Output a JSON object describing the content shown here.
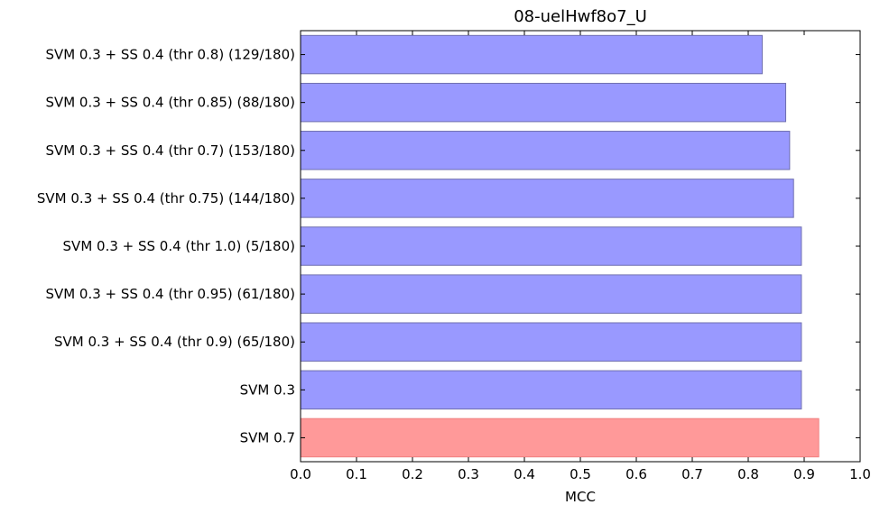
{
  "chart_data": {
    "type": "bar",
    "orientation": "horizontal",
    "title": "08-uelHwf8o7_U",
    "xlabel": "MCC",
    "ylabel": "",
    "xlim": [
      0.0,
      1.0
    ],
    "xticks": [
      "0.0",
      "0.1",
      "0.2",
      "0.3",
      "0.4",
      "0.5",
      "0.6",
      "0.7",
      "0.8",
      "0.9",
      "1.0"
    ],
    "grid": false,
    "categories": [
      "SVM 0.3 + SS 0.4 (thr 0.8) (129/180)",
      "SVM 0.3 + SS 0.4 (thr 0.85) (88/180)",
      "SVM 0.3 + SS 0.4 (thr 0.7) (153/180)",
      "SVM 0.3 + SS 0.4 (thr 0.75) (144/180)",
      "SVM 0.3 + SS 0.4 (thr 1.0) (5/180)",
      "SVM 0.3 + SS 0.4 (thr 0.95) (61/180)",
      "SVM 0.3 + SS 0.4 (thr 0.9) (65/180)",
      "SVM 0.3",
      "SVM 0.7"
    ],
    "values": [
      0.825,
      0.867,
      0.874,
      0.881,
      0.895,
      0.895,
      0.895,
      0.895,
      0.926
    ],
    "colors": [
      "#9999ff",
      "#9999ff",
      "#9999ff",
      "#9999ff",
      "#9999ff",
      "#9999ff",
      "#9999ff",
      "#9999ff",
      "#ff9999"
    ],
    "edge_colors": [
      "#6f6fb0",
      "#6f6fb0",
      "#6f6fb0",
      "#6f6fb0",
      "#6f6fb0",
      "#6f6fb0",
      "#6f6fb0",
      "#6f6fb0",
      "#f08080"
    ]
  }
}
